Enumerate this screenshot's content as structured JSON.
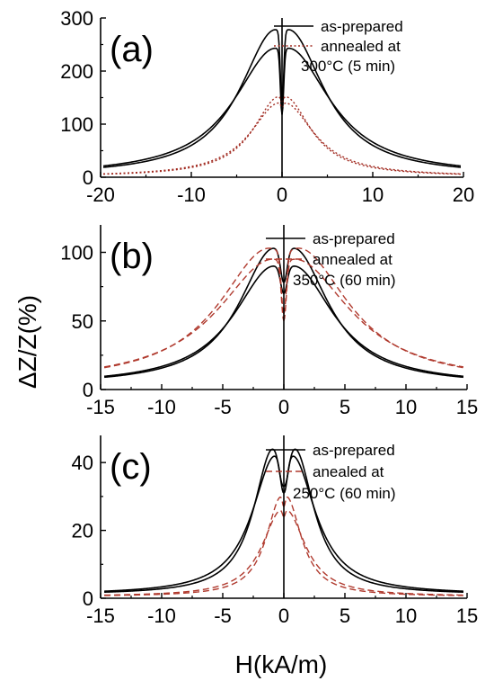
{
  "chart_data": [
    {
      "panel_label": "(a)",
      "type": "line",
      "xlim": [
        -20,
        20
      ],
      "ylim": [
        0,
        300
      ],
      "xticks": [
        "-20",
        "-10",
        "0",
        "10",
        "20"
      ],
      "yticks": [
        "0",
        "100",
        "200",
        "300"
      ],
      "legend_position": "top-right",
      "series": [
        {
          "name": "as-prepared",
          "color": "#000000",
          "style": "solid",
          "curves": [
            {
              "peak_x": -0.7,
              "peak": 278,
              "center": 135,
              "floor": 2,
              "hw": 4.8,
              "cw": 0.25
            },
            {
              "peak_x": 0.7,
              "peak": 278,
              "center": 135,
              "floor": 2,
              "hw": 4.8,
              "cw": 0.25
            },
            {
              "peak_x": -0.7,
              "peak": 243,
              "center": 118,
              "floor": 2,
              "hw": 5.6,
              "cw": 0.25
            },
            {
              "peak_x": 0.7,
              "peak": 243,
              "center": 118,
              "floor": 2,
              "hw": 5.6,
              "cw": 0.25
            }
          ]
        },
        {
          "name": "annealed at",
          "name_line2": "300°C (5 min)",
          "color": "#a0281e",
          "style": "dotted",
          "curves": [
            {
              "peak_x": -0.3,
              "peak": 152,
              "center": 142,
              "floor": 1,
              "hw": 3.5,
              "cw": 0.2
            },
            {
              "peak_x": 0.3,
              "peak": 152,
              "center": 142,
              "floor": 1,
              "hw": 3.5,
              "cw": 0.2
            },
            {
              "peak_x": -0.3,
              "peak": 140,
              "center": 132,
              "floor": 1,
              "hw": 3.9,
              "cw": 0.2
            },
            {
              "peak_x": 0.3,
              "peak": 140,
              "center": 132,
              "floor": 1,
              "hw": 3.9,
              "cw": 0.2
            }
          ]
        }
      ]
    },
    {
      "panel_label": "(b)",
      "type": "line",
      "xlim": [
        -15,
        15
      ],
      "ylim": [
        0,
        120
      ],
      "xticks": [
        "-15",
        "-10",
        "-5",
        "0",
        "5",
        "10",
        "15"
      ],
      "yticks": [
        "0",
        "50",
        "100"
      ],
      "legend_position": "top-right",
      "series": [
        {
          "name": "as-prepared",
          "color": "#000000",
          "style": "solid",
          "curves": [
            {
              "peak_x": -0.8,
              "peak": 103,
              "center": 78,
              "floor": 3,
              "hw": 3.5,
              "cw": 0.35
            },
            {
              "peak_x": 0.8,
              "peak": 103,
              "center": 78,
              "floor": 3,
              "hw": 3.5,
              "cw": 0.35
            },
            {
              "peak_x": -0.8,
              "peak": 90,
              "center": 70,
              "floor": 3,
              "hw": 4.0,
              "cw": 0.35
            },
            {
              "peak_x": 0.8,
              "peak": 90,
              "center": 70,
              "floor": 3,
              "hw": 4.0,
              "cw": 0.35
            }
          ]
        },
        {
          "name": "annealed at",
          "name_line2": "350°C (60 min)",
          "color": "#b03a2e",
          "style": "dashed",
          "curves": [
            {
              "peak_x": -1.2,
              "peak": 103,
              "center": 55,
              "floor": 4,
              "hw": 5.0,
              "cw": 0.28
            },
            {
              "peak_x": 1.2,
              "peak": 103,
              "center": 55,
              "floor": 4,
              "hw": 5.0,
              "cw": 0.28
            },
            {
              "peak_x": -0.9,
              "peak": 95,
              "center": 50,
              "floor": 4,
              "hw": 5.5,
              "cw": 0.28
            },
            {
              "peak_x": 0.9,
              "peak": 95,
              "center": 50,
              "floor": 4,
              "hw": 5.5,
              "cw": 0.28
            }
          ]
        }
      ]
    },
    {
      "panel_label": "(c)",
      "type": "line",
      "xlim": [
        -15,
        15
      ],
      "ylim": [
        0,
        48
      ],
      "xticks": [
        "-15",
        "-10",
        "-5",
        "0",
        "5",
        "10",
        "15"
      ],
      "yticks": [
        "0",
        "20",
        "40"
      ],
      "legend_position": "top-right",
      "series": [
        {
          "name": "as-prepared",
          "color": "#000000",
          "style": "solid",
          "curves": [
            {
              "peak_x": -0.9,
              "peak": 44,
              "center": 33,
              "floor": 1,
              "hw": 1.9,
              "cw": 0.4
            },
            {
              "peak_x": 0.9,
              "peak": 44,
              "center": 33,
              "floor": 1,
              "hw": 1.9,
              "cw": 0.4
            },
            {
              "peak_x": -0.7,
              "peak": 42,
              "center": 31,
              "floor": 1,
              "hw": 2.3,
              "cw": 0.35
            },
            {
              "peak_x": 0.7,
              "peak": 42,
              "center": 31,
              "floor": 1,
              "hw": 2.3,
              "cw": 0.35
            }
          ]
        },
        {
          "name": "anealed at",
          "name_line2": "250°C (60 min)",
          "color": "#b03a2e",
          "style": "dashed",
          "curves": [
            {
              "peak_x": -0.2,
              "peak": 30,
              "center": 27,
              "floor": 0.5,
              "hw": 1.5,
              "cw": 0.15
            },
            {
              "peak_x": 0.2,
              "peak": 30,
              "center": 27,
              "floor": 0.5,
              "hw": 1.5,
              "cw": 0.15
            },
            {
              "peak_x": -0.2,
              "peak": 26,
              "center": 24,
              "floor": 0.5,
              "hw": 1.9,
              "cw": 0.15
            },
            {
              "peak_x": 0.2,
              "peak": 26,
              "center": 24,
              "floor": 0.5,
              "hw": 1.9,
              "cw": 0.15
            }
          ]
        }
      ]
    }
  ],
  "ylabel": "ΔZ/Z(%)",
  "xlabel": "H(kA/m)"
}
